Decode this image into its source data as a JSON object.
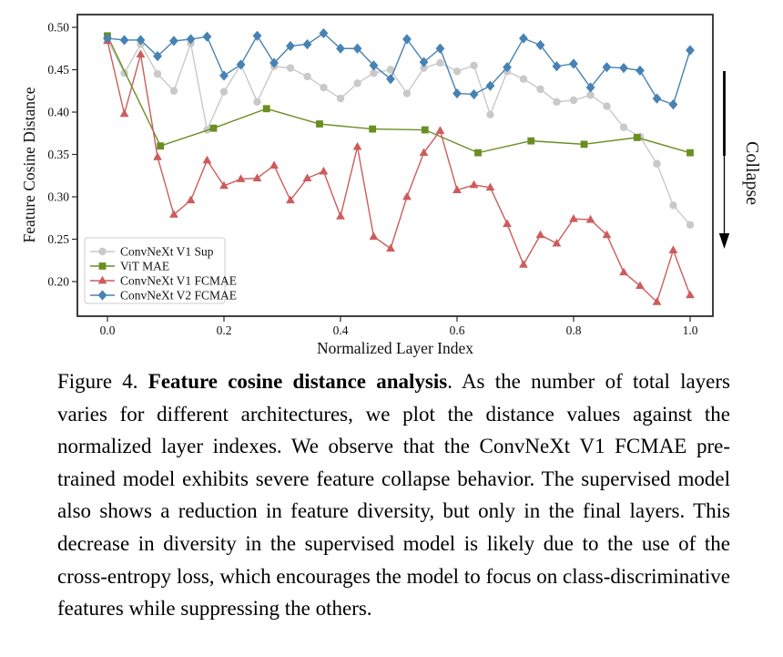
{
  "figure": {
    "caption_prefix": "Figure 4. ",
    "caption_bold": "Feature cosine distance analysis",
    "caption_rest": ". As the number of total layers varies for different architectures, we plot the distance values against the normalized layer indexes. We observe that the ConvNeXt V1 FCMAE pre-trained model exhibits severe feature collapse behavior. The supervised model also shows a reduction in feature diversity, but only in the final layers. This decrease in diversity in the supervised model is likely due to the use of the cross-entropy loss, which encourages the model to focus on class-discriminative features while suppressing the others."
  },
  "chart_data": {
    "type": "line",
    "title": "",
    "xlabel": "Normalized Layer Index",
    "ylabel": "Feature Cosine Distance",
    "xlim": [
      -0.052,
      1.039
    ],
    "ylim": [
      0.158,
      0.515
    ],
    "grid": false,
    "legend_position": "lower left",
    "x_ticks": [
      {
        "v": 0.0,
        "label": "0.0"
      },
      {
        "v": 0.2,
        "label": "0.2"
      },
      {
        "v": 0.4,
        "label": "0.4"
      },
      {
        "v": 0.6,
        "label": "0.6"
      },
      {
        "v": 0.8,
        "label": "0.8"
      },
      {
        "v": 1.0,
        "label": "1.0"
      }
    ],
    "y_ticks": [
      {
        "v": 0.2,
        "label": "0.20"
      },
      {
        "v": 0.25,
        "label": "0.25"
      },
      {
        "v": 0.3,
        "label": "0.30"
      },
      {
        "v": 0.35,
        "label": "0.35"
      },
      {
        "v": 0.4,
        "label": "0.40"
      },
      {
        "v": 0.45,
        "label": "0.45"
      },
      {
        "v": 0.5,
        "label": "0.50"
      }
    ],
    "annotation": {
      "label": "Collapse",
      "arrow_direction": "down"
    },
    "series": [
      {
        "name": "ConvNeXt V1 Sup",
        "color": "#c9c9c9",
        "marker": "circle",
        "x": [
          0,
          0.029,
          0.057,
          0.086,
          0.114,
          0.143,
          0.171,
          0.2,
          0.229,
          0.257,
          0.286,
          0.314,
          0.343,
          0.371,
          0.4,
          0.429,
          0.457,
          0.486,
          0.514,
          0.543,
          0.571,
          0.6,
          0.629,
          0.657,
          0.686,
          0.714,
          0.743,
          0.771,
          0.8,
          0.829,
          0.857,
          0.886,
          0.914,
          0.943,
          0.971,
          1
        ],
        "values": [
          0.486,
          0.446,
          0.48,
          0.445,
          0.425,
          0.481,
          0.379,
          0.424,
          0.456,
          0.412,
          0.454,
          0.452,
          0.442,
          0.429,
          0.416,
          0.434,
          0.446,
          0.45,
          0.422,
          0.452,
          0.458,
          0.448,
          0.455,
          0.397,
          0.448,
          0.439,
          0.427,
          0.412,
          0.414,
          0.42,
          0.407,
          0.382,
          0.371,
          0.339,
          0.29,
          0.267
        ]
      },
      {
        "name": "ViT MAE",
        "color": "#6b8e23",
        "marker": "square",
        "x": [
          0,
          0.091,
          0.182,
          0.273,
          0.364,
          0.455,
          0.545,
          0.636,
          0.727,
          0.818,
          0.909,
          1
        ],
        "values": [
          0.49,
          0.36,
          0.381,
          0.404,
          0.386,
          0.38,
          0.379,
          0.352,
          0.366,
          0.362,
          0.37,
          0.352
        ]
      },
      {
        "name": "ConvNeXt V1 FCMAE",
        "color": "#cd5c5c",
        "marker": "triangle",
        "x": [
          0,
          0.029,
          0.057,
          0.086,
          0.114,
          0.143,
          0.171,
          0.2,
          0.229,
          0.257,
          0.286,
          0.314,
          0.343,
          0.371,
          0.4,
          0.429,
          0.457,
          0.486,
          0.514,
          0.543,
          0.571,
          0.6,
          0.629,
          0.657,
          0.686,
          0.714,
          0.743,
          0.771,
          0.8,
          0.829,
          0.857,
          0.886,
          0.914,
          0.943,
          0.971,
          1
        ],
        "values": [
          0.484,
          0.398,
          0.468,
          0.347,
          0.279,
          0.296,
          0.343,
          0.313,
          0.321,
          0.322,
          0.337,
          0.296,
          0.322,
          0.33,
          0.277,
          0.359,
          0.253,
          0.239,
          0.3,
          0.352,
          0.378,
          0.308,
          0.314,
          0.311,
          0.268,
          0.22,
          0.255,
          0.245,
          0.274,
          0.273,
          0.255,
          0.211,
          0.195,
          0.176,
          0.237,
          0.184
        ]
      },
      {
        "name": "ConvNeXt V2 FCMAE",
        "color": "#4682b4",
        "marker": "diamond",
        "x": [
          0,
          0.029,
          0.057,
          0.086,
          0.114,
          0.143,
          0.171,
          0.2,
          0.229,
          0.257,
          0.286,
          0.314,
          0.343,
          0.371,
          0.4,
          0.429,
          0.457,
          0.486,
          0.514,
          0.543,
          0.571,
          0.6,
          0.629,
          0.657,
          0.686,
          0.714,
          0.743,
          0.771,
          0.8,
          0.829,
          0.857,
          0.886,
          0.914,
          0.943,
          0.971,
          1
        ],
        "values": [
          0.487,
          0.485,
          0.485,
          0.466,
          0.484,
          0.486,
          0.489,
          0.443,
          0.456,
          0.49,
          0.458,
          0.478,
          0.48,
          0.493,
          0.475,
          0.475,
          0.455,
          0.439,
          0.486,
          0.459,
          0.475,
          0.422,
          0.421,
          0.431,
          0.453,
          0.487,
          0.479,
          0.454,
          0.457,
          0.429,
          0.453,
          0.452,
          0.449,
          0.416,
          0.409,
          0.473
        ]
      }
    ]
  }
}
